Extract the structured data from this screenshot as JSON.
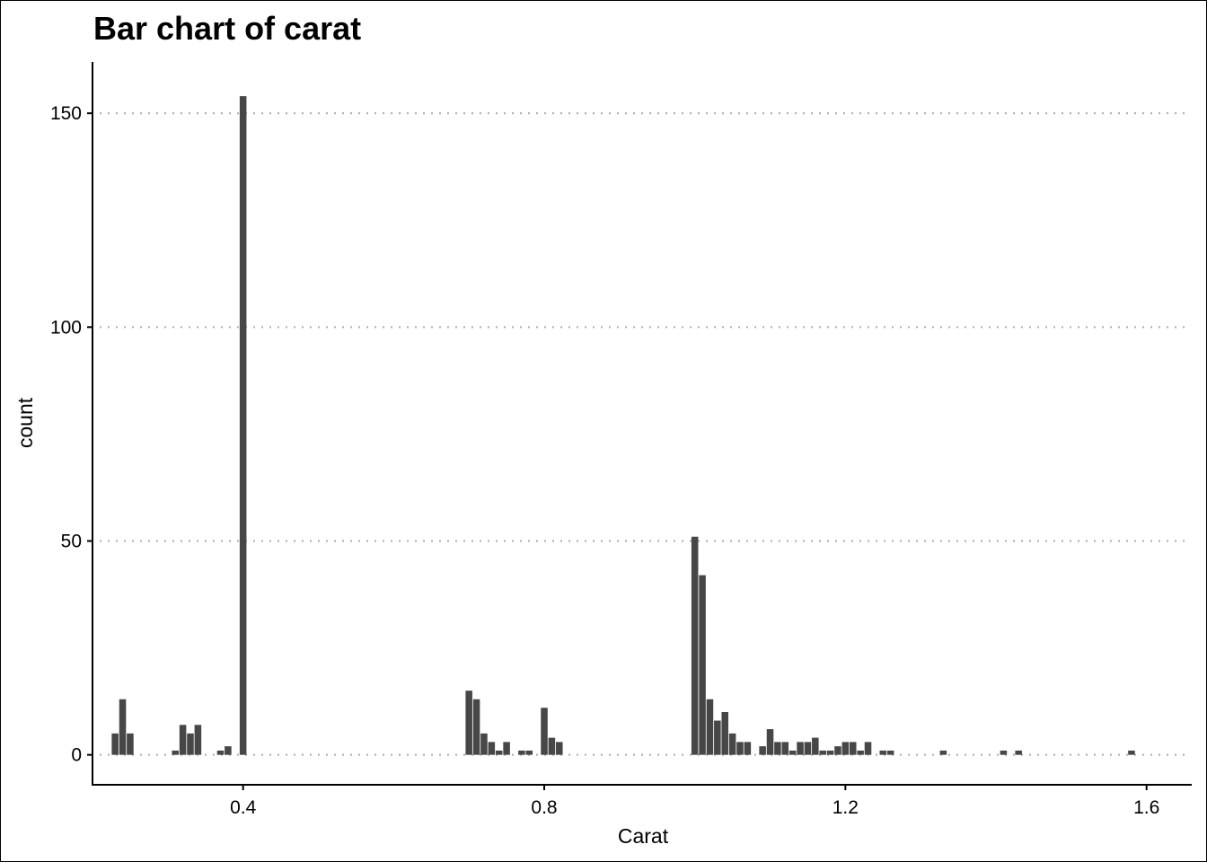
{
  "chart_data": {
    "type": "bar",
    "title": "Bar chart of carat",
    "xlabel": "Carat",
    "ylabel": "count",
    "xlim": [
      0.2,
      1.66
    ],
    "ylim": [
      -7,
      162
    ],
    "x_ticks": [
      0.4,
      0.8,
      1.2,
      1.6
    ],
    "x_tick_labels": [
      "0.4",
      "0.8",
      "1.2",
      "1.6"
    ],
    "y_ticks": [
      0,
      50,
      100,
      150
    ],
    "y_tick_labels": [
      "0",
      "50",
      "100",
      "150"
    ],
    "grid": "horizontal dotted",
    "bar_color": "#474747",
    "grid_color": "#b3b3b3",
    "bars": [
      {
        "x": 0.23,
        "y": 5
      },
      {
        "x": 0.24,
        "y": 13
      },
      {
        "x": 0.25,
        "y": 5
      },
      {
        "x": 0.31,
        "y": 1
      },
      {
        "x": 0.32,
        "y": 7
      },
      {
        "x": 0.33,
        "y": 5
      },
      {
        "x": 0.34,
        "y": 7
      },
      {
        "x": 0.37,
        "y": 1
      },
      {
        "x": 0.38,
        "y": 2
      },
      {
        "x": 0.4,
        "y": 154
      },
      {
        "x": 0.7,
        "y": 15
      },
      {
        "x": 0.71,
        "y": 13
      },
      {
        "x": 0.72,
        "y": 5
      },
      {
        "x": 0.73,
        "y": 3
      },
      {
        "x": 0.74,
        "y": 1
      },
      {
        "x": 0.75,
        "y": 3
      },
      {
        "x": 0.77,
        "y": 1
      },
      {
        "x": 0.78,
        "y": 1
      },
      {
        "x": 0.8,
        "y": 11
      },
      {
        "x": 0.81,
        "y": 4
      },
      {
        "x": 0.82,
        "y": 3
      },
      {
        "x": 1.0,
        "y": 51
      },
      {
        "x": 1.01,
        "y": 42
      },
      {
        "x": 1.02,
        "y": 13
      },
      {
        "x": 1.03,
        "y": 8
      },
      {
        "x": 1.04,
        "y": 10
      },
      {
        "x": 1.05,
        "y": 5
      },
      {
        "x": 1.06,
        "y": 3
      },
      {
        "x": 1.07,
        "y": 3
      },
      {
        "x": 1.09,
        "y": 2
      },
      {
        "x": 1.1,
        "y": 6
      },
      {
        "x": 1.11,
        "y": 3
      },
      {
        "x": 1.12,
        "y": 3
      },
      {
        "x": 1.13,
        "y": 1
      },
      {
        "x": 1.14,
        "y": 3
      },
      {
        "x": 1.15,
        "y": 3
      },
      {
        "x": 1.16,
        "y": 4
      },
      {
        "x": 1.17,
        "y": 1
      },
      {
        "x": 1.18,
        "y": 1
      },
      {
        "x": 1.19,
        "y": 2
      },
      {
        "x": 1.2,
        "y": 3
      },
      {
        "x": 1.21,
        "y": 3
      },
      {
        "x": 1.22,
        "y": 1
      },
      {
        "x": 1.23,
        "y": 3
      },
      {
        "x": 1.25,
        "y": 1
      },
      {
        "x": 1.26,
        "y": 1
      },
      {
        "x": 1.33,
        "y": 1
      },
      {
        "x": 1.41,
        "y": 1
      },
      {
        "x": 1.43,
        "y": 1
      },
      {
        "x": 1.58,
        "y": 1
      }
    ]
  }
}
